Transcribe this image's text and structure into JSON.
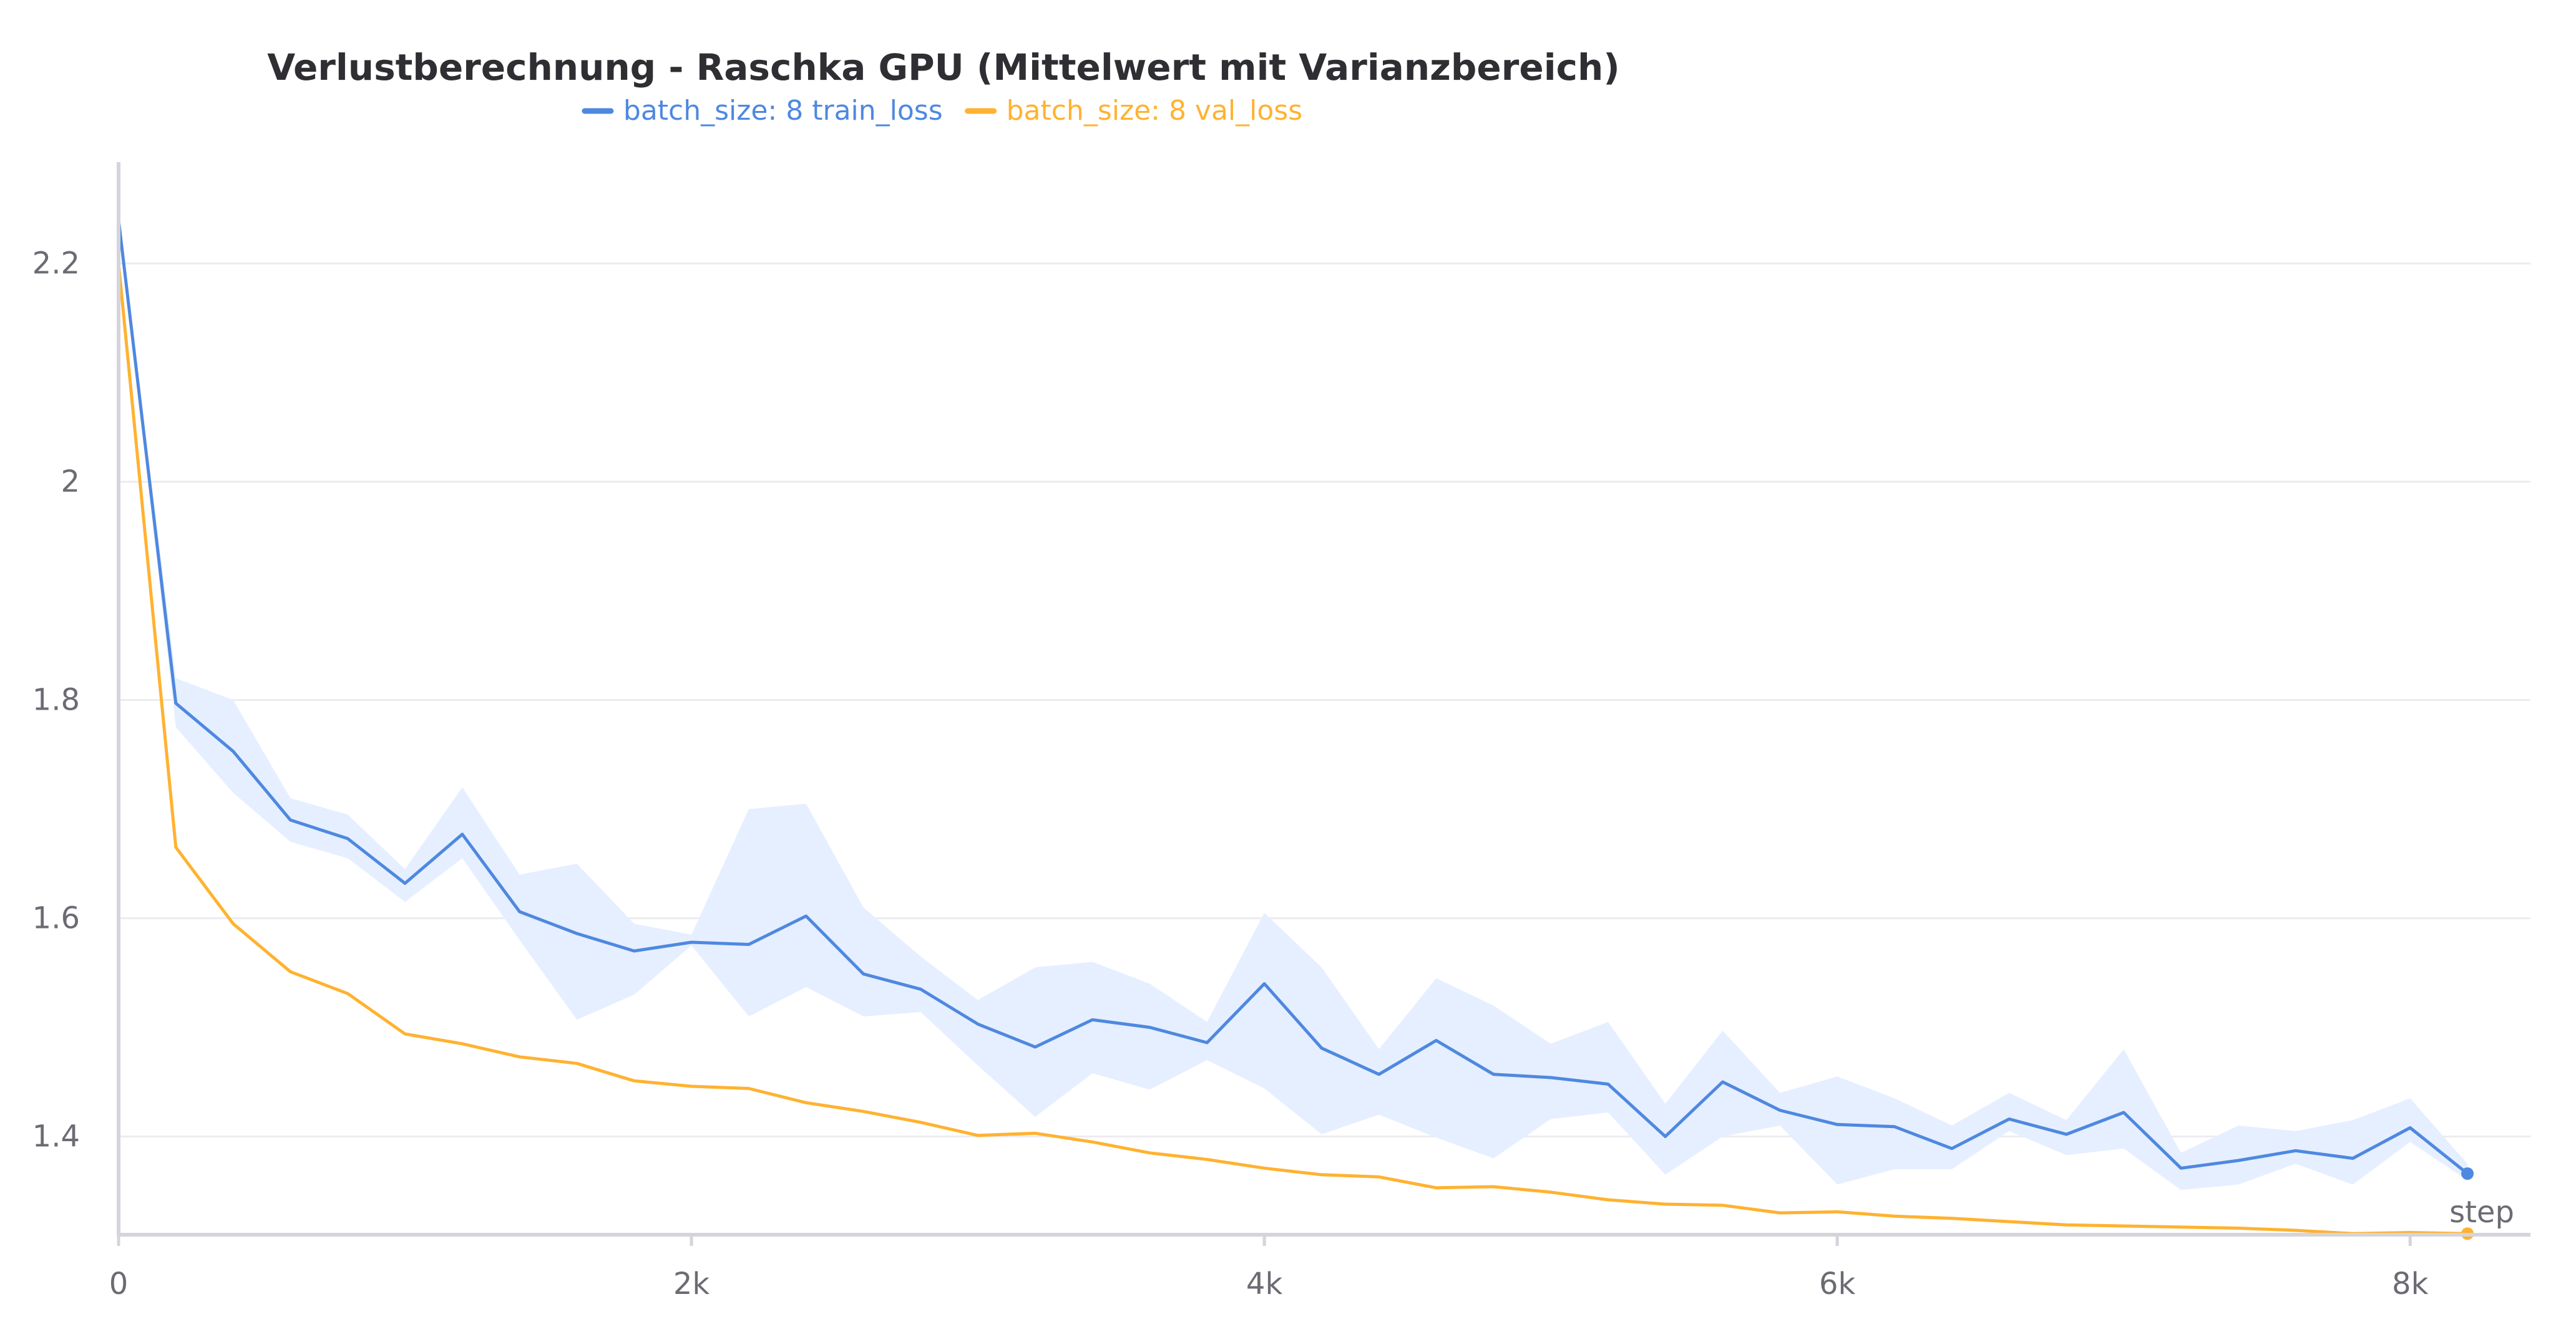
{
  "chart_data": {
    "type": "line",
    "title": "Verlustberechnung - Raschka GPU (Mittelwert mit Varianzbereich)",
    "xlabel": "step",
    "ylabel": "",
    "xlim": [
      0,
      8420
    ],
    "ylim": [
      1.31,
      2.29
    ],
    "x_ticks": [
      0,
      2000,
      4000,
      6000,
      8000
    ],
    "x_tick_labels": [
      "0",
      "2k",
      "4k",
      "6k",
      "8k"
    ],
    "y_ticks": [
      1.4,
      1.6,
      1.8,
      2.0,
      2.2
    ],
    "y_tick_labels": [
      "1.4",
      "1.6",
      "1.8",
      "2",
      "2.2"
    ],
    "grid": true,
    "legend_position": "top-center",
    "series": [
      {
        "name": "batch_size: 8 train_loss",
        "color": "#4e88e0",
        "band_color": "#e6efff",
        "x": [
          0,
          200,
          400,
          600,
          800,
          1000,
          1200,
          1400,
          1600,
          1800,
          2000,
          2200,
          2400,
          2600,
          2800,
          3000,
          3200,
          3400,
          3600,
          3800,
          4000,
          4200,
          4400,
          4600,
          4800,
          5000,
          5200,
          5400,
          5600,
          5800,
          6000,
          6200,
          6400,
          6600,
          6800,
          7000,
          7200,
          7400,
          7600,
          7800,
          8000,
          8200
        ],
        "y": [
          2.24,
          1.797,
          1.753,
          1.69,
          1.673,
          1.632,
          1.677,
          1.606,
          1.586,
          1.57,
          1.578,
          1.576,
          1.602,
          1.549,
          1.535,
          1.503,
          1.482,
          1.507,
          1.5,
          1.486,
          1.54,
          1.481,
          1.457,
          1.488,
          1.457,
          1.454,
          1.448,
          1.4,
          1.45,
          1.424,
          1.411,
          1.409,
          1.389,
          1.416,
          1.402,
          1.422,
          1.371,
          1.378,
          1.387,
          1.38,
          1.408,
          1.366
        ],
        "y_upper": [
          2.24,
          1.82,
          1.8,
          1.71,
          1.695,
          1.645,
          1.72,
          1.64,
          1.65,
          1.595,
          1.585,
          1.7,
          1.705,
          1.61,
          1.565,
          1.525,
          1.555,
          1.56,
          1.54,
          1.505,
          1.605,
          1.555,
          1.48,
          1.545,
          1.52,
          1.485,
          1.505,
          1.43,
          1.497,
          1.44,
          1.455,
          1.435,
          1.41,
          1.44,
          1.415,
          1.48,
          1.385,
          1.41,
          1.405,
          1.415,
          1.435,
          1.375
        ],
        "y_lower": [
          2.24,
          1.775,
          1.715,
          1.67,
          1.655,
          1.615,
          1.655,
          1.58,
          1.507,
          1.53,
          1.575,
          1.51,
          1.537,
          1.51,
          1.514,
          1.465,
          1.418,
          1.458,
          1.443,
          1.47,
          1.444,
          1.402,
          1.42,
          1.399,
          1.38,
          1.416,
          1.422,
          1.365,
          1.4,
          1.41,
          1.356,
          1.37,
          1.37,
          1.405,
          1.383,
          1.389,
          1.351,
          1.356,
          1.375,
          1.356,
          1.395,
          1.36
        ]
      },
      {
        "name": "batch_size: 8 val_loss",
        "color": "#ffb230",
        "band_color": "#fff1d6",
        "x": [
          0,
          200,
          400,
          600,
          800,
          1000,
          1200,
          1400,
          1600,
          1800,
          2000,
          2200,
          2400,
          2600,
          2800,
          3000,
          3200,
          3400,
          3600,
          3800,
          4000,
          4200,
          4400,
          4600,
          4800,
          5000,
          5200,
          5400,
          5600,
          5800,
          6000,
          6200,
          6400,
          6600,
          6800,
          7000,
          7200,
          7400,
          7600,
          7800,
          8000,
          8200
        ],
        "y": [
          2.2,
          1.665,
          1.595,
          1.551,
          1.531,
          1.494,
          1.485,
          1.473,
          1.467,
          1.451,
          1.446,
          1.444,
          1.431,
          1.423,
          1.413,
          1.401,
          1.403,
          1.395,
          1.385,
          1.379,
          1.371,
          1.365,
          1.363,
          1.353,
          1.354,
          1.349,
          1.342,
          1.338,
          1.337,
          1.33,
          1.331,
          1.327,
          1.325,
          1.322,
          1.319,
          1.318,
          1.317,
          1.316,
          1.314,
          1.311,
          1.312,
          1.311
        ]
      }
    ],
    "end_markers": true
  }
}
